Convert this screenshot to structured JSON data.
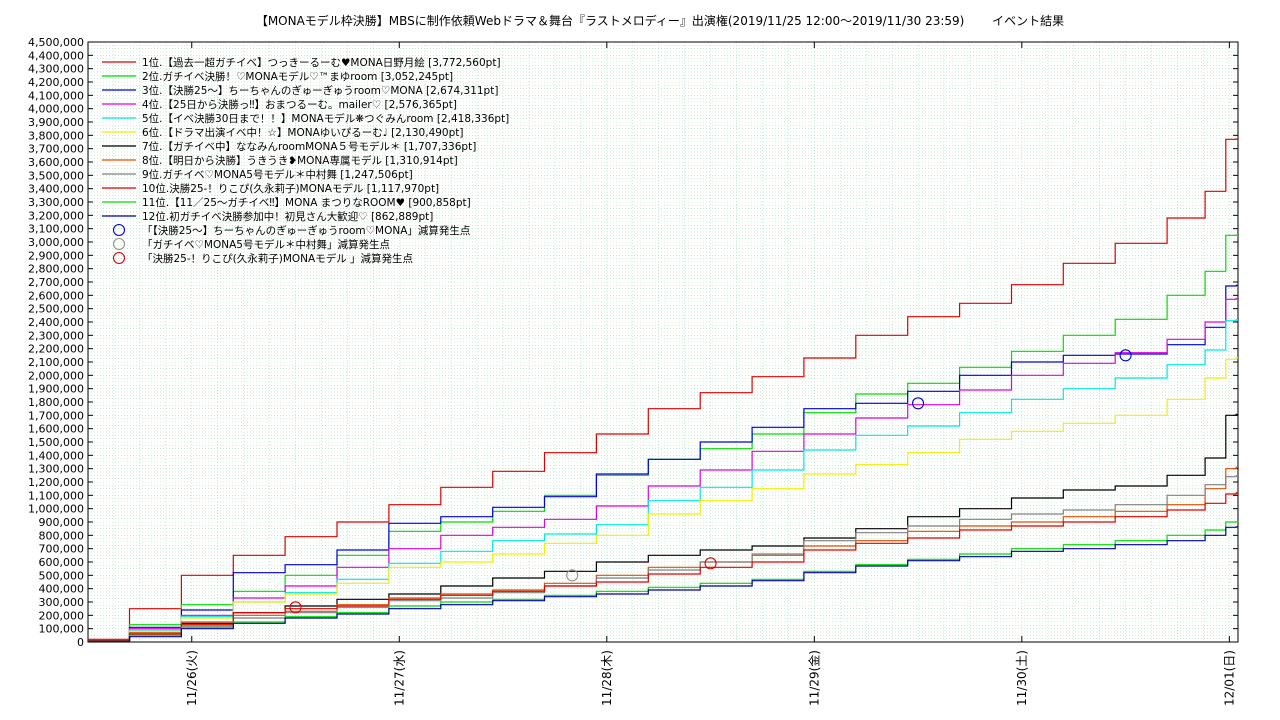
{
  "chart_data": {
    "type": "line",
    "title": "【MONAモデル枠決勝】MBSに制作依頼Webドラマ＆舞台『ラストメロディー』出演権(2019/11/25 12:00〜2019/11/30 23:59)　　 イベント結果",
    "xlabel": "",
    "ylabel": "",
    "ylim": [
      0,
      4500000
    ],
    "yticks": [
      0,
      100000,
      200000,
      300000,
      400000,
      500000,
      600000,
      700000,
      800000,
      900000,
      1000000,
      1100000,
      1200000,
      1300000,
      1400000,
      1500000,
      1600000,
      1700000,
      1800000,
      1900000,
      2000000,
      2100000,
      2200000,
      2300000,
      2400000,
      2500000,
      2600000,
      2700000,
      2800000,
      2900000,
      3000000,
      3100000,
      3200000,
      3300000,
      3400000,
      3500000,
      3600000,
      3700000,
      3800000,
      3900000,
      4000000,
      4100000,
      4200000,
      4300000,
      4400000,
      4500000
    ],
    "ytick_labels": [
      "0",
      "100,000",
      "200,000",
      "300,000",
      "400,000",
      "500,000",
      "600,000",
      "700,000",
      "800,000",
      "900,000",
      "1,000,000",
      "1,100,000",
      "1,200,000",
      "1,300,000",
      "1,400,000",
      "1,500,000",
      "1,600,000",
      "1,700,000",
      "1,800,000",
      "1,900,000",
      "2,000,000",
      "2,100,000",
      "2,200,000",
      "2,300,000",
      "2,400,000",
      "2,500,000",
      "2,600,000",
      "2,700,000",
      "2,800,000",
      "2,900,000",
      "3,000,000",
      "3,100,000",
      "3,200,000",
      "3,300,000",
      "3,400,000",
      "3,500,000",
      "3,600,000",
      "3,700,000",
      "3,800,000",
      "3,900,000",
      "4,000,000",
      "4,100,000",
      "4,200,000",
      "4,300,000",
      "4,400,000",
      "4,500,000"
    ],
    "xlim": [
      "2019/11/25 12:00",
      "2019/12/01 01:00"
    ],
    "xticks": [
      "2019/11/26 00:00",
      "2019/11/27 00:00",
      "2019/11/28 00:00",
      "2019/11/29 00:00",
      "2019/11/30 00:00",
      "2019/12/01 00:00"
    ],
    "xtick_labels": [
      "11/26(火)",
      "11/27(水)",
      "11/28(木)",
      "11/29(金)",
      "11/30(土)",
      "12/01(日)"
    ],
    "grid": true,
    "legend_position": "top-left",
    "series": [
      {
        "name": "1位.【過去一超ガチイベ】つっきーるーむ♥MONA日野月絵 [3,772,560pt]",
        "color": "#e00000",
        "x": [
          "2019/11/25 12:00",
          "2019/11/25 18:00",
          "2019/11/26 00:00",
          "2019/11/26 06:00",
          "2019/11/26 12:00",
          "2019/11/26 18:00",
          "2019/11/27 00:00",
          "2019/11/27 06:00",
          "2019/11/27 12:00",
          "2019/11/27 18:00",
          "2019/11/28 00:00",
          "2019/11/28 06:00",
          "2019/11/28 12:00",
          "2019/11/28 18:00",
          "2019/11/29 00:00",
          "2019/11/29 06:00",
          "2019/11/29 12:00",
          "2019/11/29 18:00",
          "2019/11/30 00:00",
          "2019/11/30 06:00",
          "2019/11/30 12:00",
          "2019/11/30 18:00",
          "2019/11/30 22:00",
          "2019/11/30 23:59",
          "2019/12/01 01:00"
        ],
        "y": [
          20000,
          250000,
          500000,
          650000,
          790000,
          900000,
          1030000,
          1160000,
          1280000,
          1420000,
          1560000,
          1750000,
          1870000,
          1990000,
          2130000,
          2300000,
          2440000,
          2540000,
          2680000,
          2840000,
          2990000,
          3180000,
          3380000,
          3770000,
          3772560
        ]
      },
      {
        "name": "2位.ガチイベ決勝！♡MONAモデル♡™まゆroom [3,052,245pt]",
        "color": "#00dd00",
        "x": [
          "2019/11/25 12:00",
          "2019/11/25 18:00",
          "2019/11/26 00:00",
          "2019/11/26 06:00",
          "2019/11/26 12:00",
          "2019/11/26 18:00",
          "2019/11/27 00:00",
          "2019/11/27 06:00",
          "2019/11/27 12:00",
          "2019/11/27 18:00",
          "2019/11/28 00:00",
          "2019/11/28 06:00",
          "2019/11/28 12:00",
          "2019/11/28 18:00",
          "2019/11/29 00:00",
          "2019/11/29 06:00",
          "2019/11/29 12:00",
          "2019/11/29 18:00",
          "2019/11/30 00:00",
          "2019/11/30 06:00",
          "2019/11/30 12:00",
          "2019/11/30 18:00",
          "2019/11/30 22:00",
          "2019/11/30 23:59",
          "2019/12/01 01:00"
        ],
        "y": [
          10000,
          130000,
          280000,
          380000,
          500000,
          650000,
          830000,
          900000,
          980000,
          1100000,
          1250000,
          1370000,
          1450000,
          1560000,
          1720000,
          1860000,
          1940000,
          2060000,
          2180000,
          2300000,
          2420000,
          2600000,
          2780000,
          3050000,
          3052245
        ]
      },
      {
        "name": "3位.【決勝25〜】ちーちゃんのぎゅーぎゅうroom♡MONA [2,674,311pt]",
        "color": "#0000e0",
        "x": [
          "2019/11/25 12:00",
          "2019/11/25 18:00",
          "2019/11/26 00:00",
          "2019/11/26 06:00",
          "2019/11/26 12:00",
          "2019/11/26 18:00",
          "2019/11/27 00:00",
          "2019/11/27 06:00",
          "2019/11/27 12:00",
          "2019/11/27 18:00",
          "2019/11/28 00:00",
          "2019/11/28 06:00",
          "2019/11/28 12:00",
          "2019/11/28 18:00",
          "2019/11/29 00:00",
          "2019/11/29 06:00",
          "2019/11/29 12:00",
          "2019/11/29 18:00",
          "2019/11/30 00:00",
          "2019/11/30 06:00",
          "2019/11/30 12:00",
          "2019/11/30 18:00",
          "2019/11/30 22:00",
          "2019/11/30 23:59",
          "2019/12/01 01:00"
        ],
        "y": [
          10000,
          110000,
          240000,
          520000,
          580000,
          690000,
          890000,
          940000,
          1010000,
          1090000,
          1260000,
          1370000,
          1500000,
          1610000,
          1750000,
          1790000,
          1880000,
          2000000,
          2100000,
          2150000,
          2160000,
          2230000,
          2360000,
          2670000,
          2674311
        ]
      },
      {
        "name": "4位.【25日から決勝っ‼】おまつるーむ。mailer♡ [2,576,365pt]",
        "color": "#e000e0",
        "x": [
          "2019/11/25 12:00",
          "2019/11/25 18:00",
          "2019/11/26 00:00",
          "2019/11/26 06:00",
          "2019/11/26 12:00",
          "2019/11/26 18:00",
          "2019/11/27 00:00",
          "2019/11/27 06:00",
          "2019/11/27 12:00",
          "2019/11/27 18:00",
          "2019/11/28 00:00",
          "2019/11/28 06:00",
          "2019/11/28 12:00",
          "2019/11/28 18:00",
          "2019/11/29 00:00",
          "2019/11/29 06:00",
          "2019/11/29 12:00",
          "2019/11/29 18:00",
          "2019/11/30 00:00",
          "2019/11/30 06:00",
          "2019/11/30 12:00",
          "2019/11/30 18:00",
          "2019/11/30 22:00",
          "2019/11/30 23:59",
          "2019/12/01 01:00"
        ],
        "y": [
          10000,
          100000,
          200000,
          330000,
          420000,
          560000,
          700000,
          800000,
          860000,
          920000,
          1020000,
          1170000,
          1290000,
          1430000,
          1560000,
          1680000,
          1780000,
          1890000,
          2000000,
          2090000,
          2170000,
          2270000,
          2400000,
          2570000,
          2576365
        ]
      },
      {
        "name": "5位.【イベ決勝30日まで！！】MONAモデル❋つぐみんroom [2,418,336pt]",
        "color": "#00e8e8",
        "x": [
          "2019/11/25 12:00",
          "2019/11/25 18:00",
          "2019/11/26 00:00",
          "2019/11/26 06:00",
          "2019/11/26 12:00",
          "2019/11/26 18:00",
          "2019/11/27 00:00",
          "2019/11/27 06:00",
          "2019/11/27 12:00",
          "2019/11/27 18:00",
          "2019/11/28 00:00",
          "2019/11/28 06:00",
          "2019/11/28 12:00",
          "2019/11/28 18:00",
          "2019/11/29 00:00",
          "2019/11/29 06:00",
          "2019/11/29 12:00",
          "2019/11/29 18:00",
          "2019/11/30 00:00",
          "2019/11/30 06:00",
          "2019/11/30 12:00",
          "2019/11/30 18:00",
          "2019/11/30 22:00",
          "2019/11/30 23:59",
          "2019/12/01 01:00"
        ],
        "y": [
          10000,
          90000,
          190000,
          300000,
          370000,
          470000,
          590000,
          680000,
          760000,
          810000,
          880000,
          1060000,
          1160000,
          1290000,
          1440000,
          1550000,
          1620000,
          1720000,
          1820000,
          1900000,
          1980000,
          2080000,
          2190000,
          2410000,
          2418336
        ]
      },
      {
        "name": "6位.【ドラマ出演イベ中！☆】MONAゆいぴるーむ♩ [2,130,490pt]",
        "color": "#f0f000",
        "x": [
          "2019/11/25 12:00",
          "2019/11/25 18:00",
          "2019/11/26 00:00",
          "2019/11/26 06:00",
          "2019/11/26 12:00",
          "2019/11/26 18:00",
          "2019/11/27 00:00",
          "2019/11/27 06:00",
          "2019/11/27 12:00",
          "2019/11/27 18:00",
          "2019/11/28 00:00",
          "2019/11/28 06:00",
          "2019/11/28 12:00",
          "2019/11/28 18:00",
          "2019/11/29 00:00",
          "2019/11/29 06:00",
          "2019/11/29 12:00",
          "2019/11/29 18:00",
          "2019/11/30 00:00",
          "2019/11/30 06:00",
          "2019/11/30 12:00",
          "2019/11/30 18:00",
          "2019/11/30 22:00",
          "2019/11/30 23:59",
          "2019/12/01 01:00"
        ],
        "y": [
          10000,
          80000,
          180000,
          300000,
          360000,
          440000,
          560000,
          600000,
          660000,
          740000,
          800000,
          960000,
          1060000,
          1150000,
          1260000,
          1330000,
          1420000,
          1520000,
          1580000,
          1640000,
          1700000,
          1820000,
          1980000,
          2120000,
          2130490
        ]
      },
      {
        "name": "7位.【ガチイベ中】ななみんroomMONA５号モデル＊ [1,707,336pt]",
        "color": "#000000",
        "x": [
          "2019/11/25 12:00",
          "2019/11/25 18:00",
          "2019/11/26 00:00",
          "2019/11/26 06:00",
          "2019/11/26 12:00",
          "2019/11/26 18:00",
          "2019/11/27 00:00",
          "2019/11/27 06:00",
          "2019/11/27 12:00",
          "2019/11/27 18:00",
          "2019/11/28 00:00",
          "2019/11/28 06:00",
          "2019/11/28 12:00",
          "2019/11/28 18:00",
          "2019/11/29 00:00",
          "2019/11/29 06:00",
          "2019/11/29 12:00",
          "2019/11/29 18:00",
          "2019/11/30 00:00",
          "2019/11/30 06:00",
          "2019/11/30 12:00",
          "2019/11/30 18:00",
          "2019/11/30 22:00",
          "2019/11/30 23:59",
          "2019/12/01 01:00"
        ],
        "y": [
          10000,
          60000,
          140000,
          220000,
          270000,
          320000,
          360000,
          420000,
          480000,
          530000,
          600000,
          650000,
          690000,
          720000,
          780000,
          850000,
          940000,
          1000000,
          1080000,
          1140000,
          1170000,
          1250000,
          1380000,
          1700000,
          1707336
        ]
      },
      {
        "name": "8位.【明日から決勝】うきうき❥MONA専属モデル [1,310,914pt]",
        "color": "#e05000",
        "x": [
          "2019/11/25 12:00",
          "2019/11/25 18:00",
          "2019/11/26 00:00",
          "2019/11/26 06:00",
          "2019/11/26 12:00",
          "2019/11/26 18:00",
          "2019/11/27 00:00",
          "2019/11/27 06:00",
          "2019/11/27 12:00",
          "2019/11/27 18:00",
          "2019/11/28 00:00",
          "2019/11/28 06:00",
          "2019/11/28 12:00",
          "2019/11/28 18:00",
          "2019/11/29 00:00",
          "2019/11/29 06:00",
          "2019/11/29 12:00",
          "2019/11/29 18:00",
          "2019/11/30 00:00",
          "2019/11/30 06:00",
          "2019/11/30 12:00",
          "2019/11/30 18:00",
          "2019/11/30 22:00",
          "2019/11/30 23:59",
          "2019/12/01 01:00"
        ],
        "y": [
          10000,
          70000,
          150000,
          200000,
          230000,
          280000,
          330000,
          360000,
          390000,
          440000,
          500000,
          560000,
          600000,
          650000,
          720000,
          760000,
          830000,
          870000,
          900000,
          940000,
          980000,
          1030000,
          1150000,
          1300000,
          1310914
        ]
      },
      {
        "name": "9位.ガチイベ♡MONA5号モデル＊中村舞 [1,247,506pt]",
        "color": "#808080",
        "x": [
          "2019/11/25 12:00",
          "2019/11/25 18:00",
          "2019/11/26 00:00",
          "2019/11/26 06:00",
          "2019/11/26 12:00",
          "2019/11/26 18:00",
          "2019/11/27 00:00",
          "2019/11/27 06:00",
          "2019/11/27 12:00",
          "2019/11/27 18:00",
          "2019/11/28 00:00",
          "2019/11/28 06:00",
          "2019/11/28 12:00",
          "2019/11/28 18:00",
          "2019/11/29 00:00",
          "2019/11/29 06:00",
          "2019/11/29 12:00",
          "2019/11/29 18:00",
          "2019/11/30 00:00",
          "2019/11/30 06:00",
          "2019/11/30 12:00",
          "2019/11/30 18:00",
          "2019/11/30 22:00",
          "2019/11/30 23:59",
          "2019/12/01 01:00"
        ],
        "y": [
          10000,
          60000,
          120000,
          180000,
          220000,
          260000,
          310000,
          330000,
          370000,
          420000,
          480000,
          540000,
          600000,
          660000,
          760000,
          820000,
          870000,
          920000,
          960000,
          990000,
          1030000,
          1100000,
          1180000,
          1240000,
          1247506
        ]
      },
      {
        "name": "10位.決勝25-！りこぴ(久永莉子)MONAモデル [1,117,970pt]",
        "color": "#e00000",
        "x": [
          "2019/11/25 12:00",
          "2019/11/25 18:00",
          "2019/11/26 00:00",
          "2019/11/26 06:00",
          "2019/11/26 12:00",
          "2019/11/26 18:00",
          "2019/11/27 00:00",
          "2019/11/27 06:00",
          "2019/11/27 12:00",
          "2019/11/27 18:00",
          "2019/11/28 00:00",
          "2019/11/28 06:00",
          "2019/11/28 12:00",
          "2019/11/28 18:00",
          "2019/11/29 00:00",
          "2019/11/29 06:00",
          "2019/11/29 12:00",
          "2019/11/29 18:00",
          "2019/11/30 00:00",
          "2019/11/30 06:00",
          "2019/11/30 12:00",
          "2019/11/30 18:00",
          "2019/11/30 22:00",
          "2019/11/30 23:59",
          "2019/12/01 01:00"
        ],
        "y": [
          10000,
          60000,
          130000,
          220000,
          250000,
          270000,
          320000,
          350000,
          380000,
          420000,
          450000,
          510000,
          560000,
          600000,
          690000,
          740000,
          780000,
          840000,
          870000,
          900000,
          940000,
          990000,
          1040000,
          1110000,
          1117970
        ]
      },
      {
        "name": "11位.【11／25〜ガチイベ‼】MONA まつりなROOM♥ [900,858pt]",
        "color": "#00dd00",
        "x": [
          "2019/11/25 12:00",
          "2019/11/25 18:00",
          "2019/11/26 00:00",
          "2019/11/26 06:00",
          "2019/11/26 12:00",
          "2019/11/26 18:00",
          "2019/11/27 00:00",
          "2019/11/27 06:00",
          "2019/11/27 12:00",
          "2019/11/27 18:00",
          "2019/11/28 00:00",
          "2019/11/28 06:00",
          "2019/11/28 12:00",
          "2019/11/28 18:00",
          "2019/11/29 00:00",
          "2019/11/29 06:00",
          "2019/11/29 12:00",
          "2019/11/29 18:00",
          "2019/11/30 00:00",
          "2019/11/30 06:00",
          "2019/11/30 12:00",
          "2019/11/30 18:00",
          "2019/11/30 22:00",
          "2019/11/30 23:59",
          "2019/12/01 01:00"
        ],
        "y": [
          5000,
          50000,
          110000,
          150000,
          190000,
          220000,
          270000,
          300000,
          320000,
          350000,
          380000,
          410000,
          440000,
          470000,
          530000,
          580000,
          620000,
          660000,
          700000,
          730000,
          760000,
          800000,
          840000,
          900000,
          900858
        ]
      },
      {
        "name": "12位.初ガチイベ決勝参加中！初見さん大歓迎♡ [862,889pt]",
        "color": "#0000a0",
        "x": [
          "2019/11/25 12:00",
          "2019/11/25 18:00",
          "2019/11/26 00:00",
          "2019/11/26 06:00",
          "2019/11/26 12:00",
          "2019/11/26 18:00",
          "2019/11/27 00:00",
          "2019/11/27 06:00",
          "2019/11/27 12:00",
          "2019/11/27 18:00",
          "2019/11/28 00:00",
          "2019/11/28 06:00",
          "2019/11/28 12:00",
          "2019/11/28 18:00",
          "2019/11/29 00:00",
          "2019/11/29 06:00",
          "2019/11/29 12:00",
          "2019/11/29 18:00",
          "2019/11/30 00:00",
          "2019/11/30 06:00",
          "2019/11/30 12:00",
          "2019/11/30 18:00",
          "2019/11/30 22:00",
          "2019/11/30 23:59",
          "2019/12/01 01:00"
        ],
        "y": [
          5000,
          40000,
          100000,
          140000,
          180000,
          210000,
          250000,
          280000,
          310000,
          340000,
          360000,
          390000,
          420000,
          460000,
          520000,
          570000,
          610000,
          640000,
          680000,
          700000,
          730000,
          760000,
          800000,
          860000,
          862889
        ]
      }
    ],
    "markers": [
      {
        "name": "「【決勝25〜】ちーちゃんのぎゅーぎゅうroom♡MONA」減算発生点",
        "color": "#0000e0",
        "points": [
          {
            "x": "2019/11/29 12:00",
            "y": 1790000
          },
          {
            "x": "2019/11/30 12:00",
            "y": 2150000
          }
        ]
      },
      {
        "name": "「ガチイベ♡MONA5号モデル＊中村舞」減算発生点",
        "color": "#909090",
        "points": [
          {
            "x": "2019/11/27 20:00",
            "y": 500000
          }
        ]
      },
      {
        "name": "「決勝25-！りこぴ(久永莉子)MONAモデル 」減算発生点",
        "color": "#e00000",
        "points": [
          {
            "x": "2019/11/26 12:00",
            "y": 260000
          },
          {
            "x": "2019/11/28 12:00",
            "y": 590000
          }
        ]
      }
    ]
  }
}
